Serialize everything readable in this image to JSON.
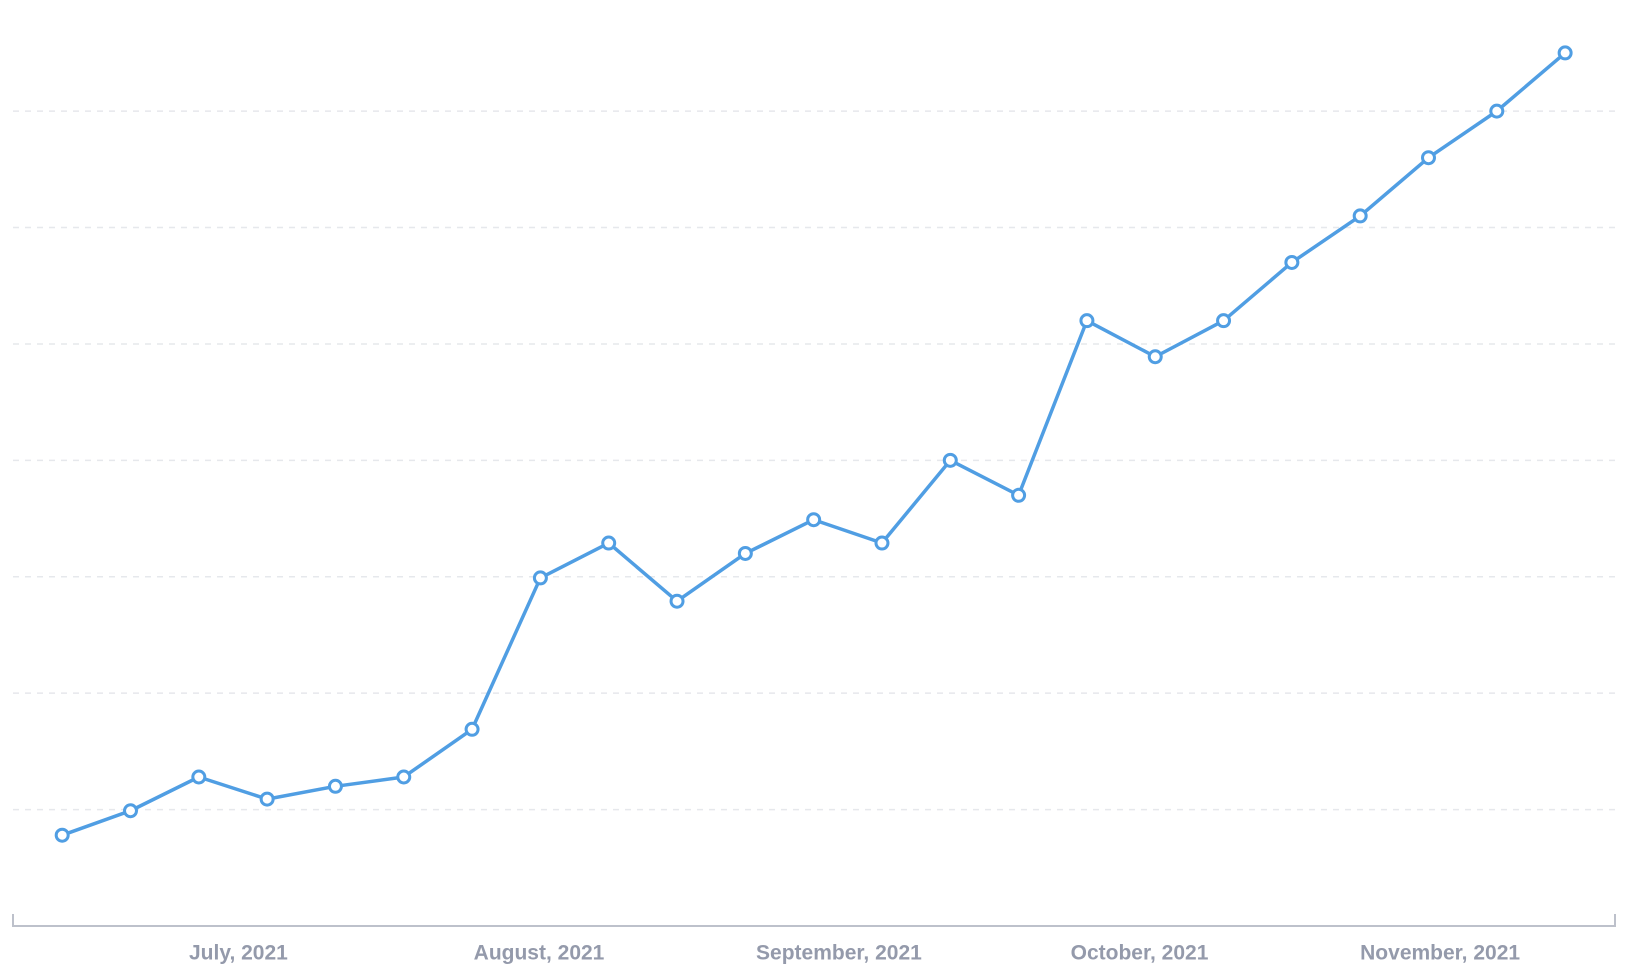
{
  "chart_data": {
    "type": "line",
    "x": [
      0,
      1,
      2,
      3,
      4,
      5,
      6,
      7,
      8,
      9,
      10,
      11,
      12,
      13,
      14,
      15,
      16,
      17,
      18,
      19,
      20,
      21,
      22
    ],
    "series": [
      {
        "color": "#509ee3",
        "values": [
          0.78,
          0.99,
          1.28,
          1.09,
          1.2,
          1.28,
          1.69,
          2.99,
          3.29,
          2.79,
          3.2,
          3.49,
          3.29,
          4.0,
          3.7,
          5.2,
          4.89,
          5.2,
          5.7,
          6.1,
          6.6,
          7.0,
          7.5
        ]
      }
    ],
    "xlim": [
      -0.72,
      22.73
    ],
    "xticks": [
      {
        "value": 2.58,
        "label": "July, 2021"
      },
      {
        "value": 6.98,
        "label": "August, 2021"
      },
      {
        "value": 11.37,
        "label": "September, 2021"
      },
      {
        "value": 15.77,
        "label": "October, 2021"
      },
      {
        "value": 20.17,
        "label": "November, 2021"
      }
    ],
    "ylim": [
      0,
      7.8
    ],
    "yticks": [
      1,
      2,
      3,
      4,
      5,
      6,
      7
    ],
    "grid": true
  }
}
